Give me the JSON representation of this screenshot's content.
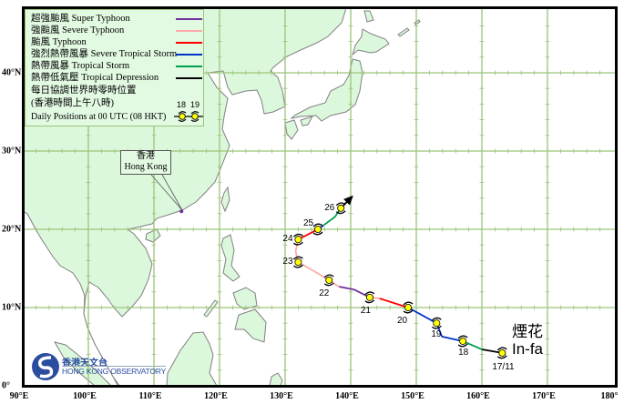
{
  "legend": {
    "items": [
      {
        "label": "超強颱風  Super Typhoon",
        "color": "#7030a0"
      },
      {
        "label": "強颱風  Severe Typhoon",
        "color": "#ffaaaa"
      },
      {
        "label": "颱風  Typhoon",
        "color": "#ff0000"
      },
      {
        "label": "強烈熱帶風暴  Severe Tropical Storm",
        "color": "#0033cc"
      },
      {
        "label": "熱帶風暴  Tropical Storm",
        "color": "#00a050"
      },
      {
        "label": "熱帶低氣壓  Tropical Depression",
        "color": "#000000"
      }
    ],
    "daily_cn_1": "每日協調世界時零時位置",
    "daily_cn_2": "(香港時間上午八時)",
    "daily_en": "Daily Positions at 00 UTC (08 HKT)",
    "sample_day_1": "18",
    "sample_day_2": "19"
  },
  "hong_kong": {
    "name_cn": "香港",
    "name_en": "Hong Kong",
    "lon": 114.2,
    "lat": 22.3
  },
  "storm": {
    "name_cn": "煙花",
    "name_en": "In-fa"
  },
  "axes": {
    "lon_labels": [
      {
        "value": 90,
        "text": "90°E"
      },
      {
        "value": 100,
        "text": "100°E"
      },
      {
        "value": 110,
        "text": "110°E"
      },
      {
        "value": 120,
        "text": "120°E"
      },
      {
        "value": 130,
        "text": "130°E"
      },
      {
        "value": 140,
        "text": "140°E"
      },
      {
        "value": 150,
        "text": "150°E"
      },
      {
        "value": 160,
        "text": "160°E"
      },
      {
        "value": 170,
        "text": "170°E"
      },
      {
        "value": 180,
        "text": "180°"
      }
    ],
    "lat_labels": [
      {
        "value": 0,
        "text": "0°"
      },
      {
        "value": 10,
        "text": "10°N"
      },
      {
        "value": 20,
        "text": "20°N"
      },
      {
        "value": 30,
        "text": "30°N"
      },
      {
        "value": 40,
        "text": "40°N"
      }
    ],
    "lon_range": [
      90,
      180
    ],
    "lat_range": [
      0,
      48.3
    ]
  },
  "logo": {
    "name_cn": "香港天文台",
    "name_en": "HONG KONG OBSERVATORY"
  },
  "chart_data": {
    "type": "track-map",
    "positions": [
      {
        "label": "17/11",
        "lon": 163.1,
        "lat": 4.2
      },
      {
        "label": "18",
        "lon": 157.1,
        "lat": 5.7
      },
      {
        "label": "19",
        "lon": 153.1,
        "lat": 8.0
      },
      {
        "label": "20",
        "lon": 148.75,
        "lat": 10.0
      },
      {
        "label": "21",
        "lon": 142.9,
        "lat": 11.3
      },
      {
        "label": "22",
        "lon": 136.7,
        "lat": 13.5
      },
      {
        "label": "23",
        "lon": 132.0,
        "lat": 15.8
      },
      {
        "label": "24",
        "lon": 132.0,
        "lat": 18.7
      },
      {
        "label": "25",
        "lon": 135.0,
        "lat": 20.0
      },
      {
        "label": "26",
        "lon": 138.5,
        "lat": 22.7
      }
    ],
    "segments": [
      {
        "category": "Tropical Depression",
        "color": "#000000",
        "points": [
          [
            163.1,
            4.2
          ],
          [
            160.0,
            4.65
          ]
        ]
      },
      {
        "category": "Tropical Storm",
        "color": "#00a050",
        "points": [
          [
            160.0,
            4.65
          ],
          [
            157.1,
            5.7
          ]
        ]
      },
      {
        "category": "Severe Tropical Storm",
        "color": "#0033cc",
        "points": [
          [
            157.1,
            5.7
          ],
          [
            153.9,
            6.3
          ],
          [
            153.1,
            8.0
          ],
          [
            148.75,
            10.0
          ]
        ]
      },
      {
        "category": "Typhoon",
        "color": "#ff0000",
        "points": [
          [
            148.75,
            10.0
          ],
          [
            144.4,
            11.16
          ]
        ]
      },
      {
        "category": "Severe Typhoon",
        "color": "#ffaaaa",
        "points": [
          [
            144.4,
            11.16
          ],
          [
            142.9,
            11.3
          ]
        ]
      },
      {
        "category": "Super Typhoon",
        "color": "#7030a0",
        "points": [
          [
            142.9,
            11.3
          ],
          [
            140.5,
            12.3
          ],
          [
            138.2,
            12.67
          ]
        ]
      },
      {
        "category": "Severe Typhoon",
        "color": "#ffaaaa",
        "points": [
          [
            138.2,
            12.67
          ],
          [
            136.7,
            13.5
          ],
          [
            134.4,
            14.65
          ],
          [
            132.0,
            15.8
          ],
          [
            131.6,
            17.2
          ],
          [
            132.0,
            18.7
          ]
        ]
      },
      {
        "category": "Typhoon",
        "color": "#ff0000",
        "points": [
          [
            132.0,
            18.7
          ],
          [
            135.0,
            20.0
          ]
        ]
      },
      {
        "category": "Severe Tropical Storm",
        "color": "#0033cc",
        "points": [
          [
            135.0,
            20.0
          ],
          [
            135.8,
            20.47
          ]
        ]
      },
      {
        "category": "Tropical Storm",
        "color": "#00a050",
        "points": [
          [
            135.8,
            20.47
          ],
          [
            137.6,
            21.6
          ],
          [
            138.5,
            22.7
          ]
        ]
      }
    ],
    "forecast_arrow": {
      "from": [
        138.5,
        22.7
      ],
      "to": [
        140.0,
        24.0
      ]
    }
  }
}
